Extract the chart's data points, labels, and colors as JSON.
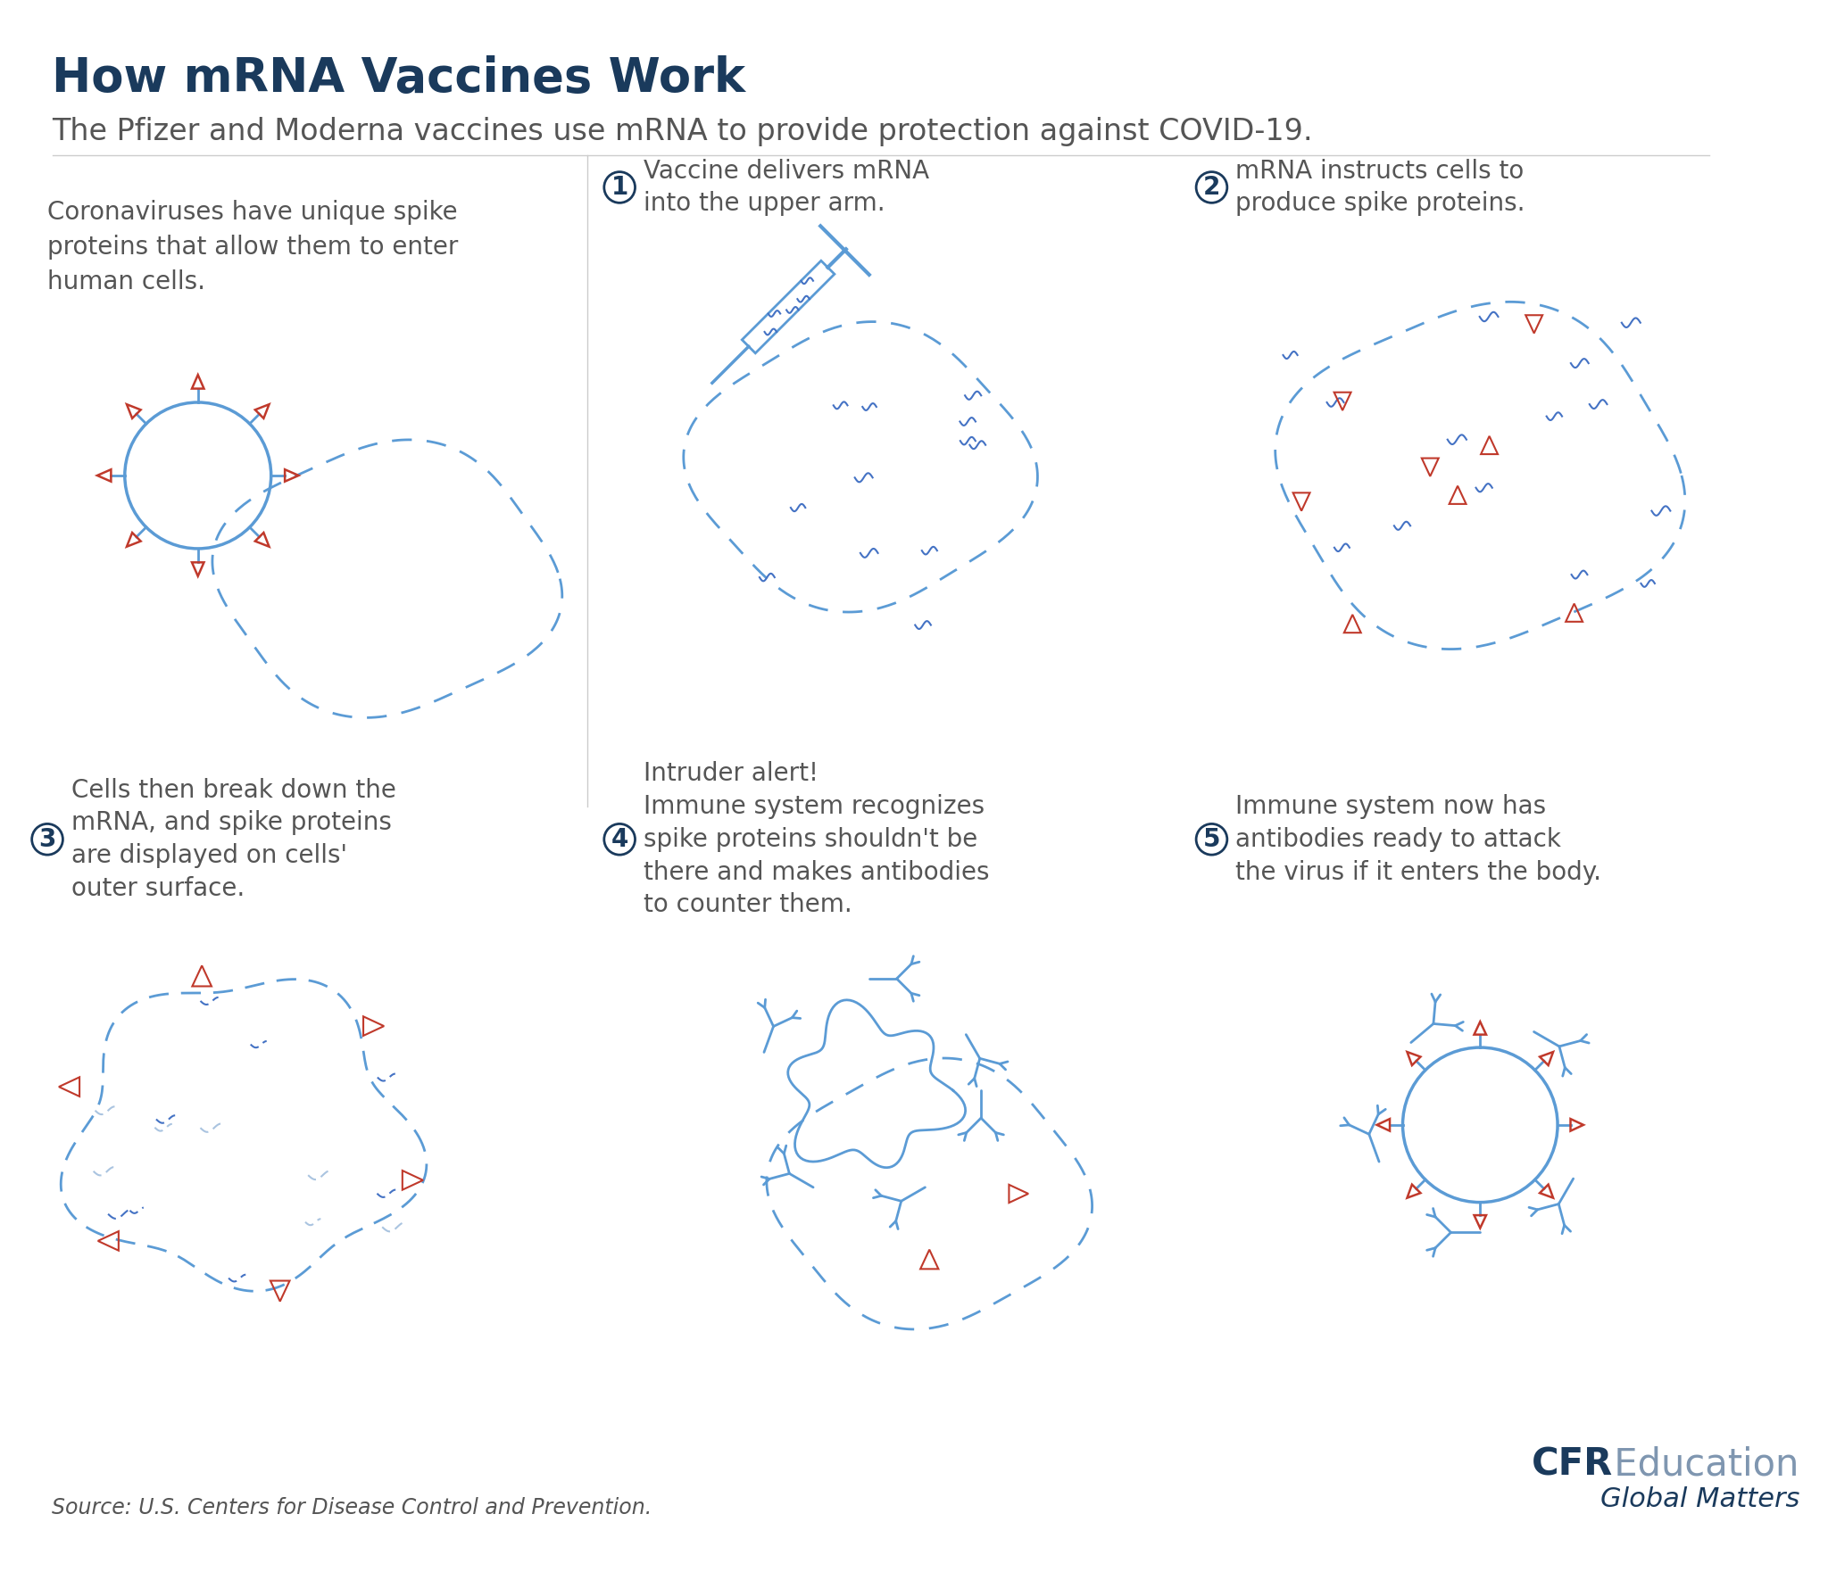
{
  "title": "How mRNA Vaccines Work",
  "subtitle": "The Pfizer and Moderna vaccines use mRNA to provide protection against COVID-19.",
  "source": "Source: U.S. Centers for Disease Control and Prevention.",
  "cfr_bold": "CFR",
  "cfr_light": " Education",
  "cfr_sub": "Global Matters",
  "panel0_text": "Coronaviruses have unique spike\nproteins that allow them to enter\nhuman cells.",
  "panel1_num": "1",
  "panel1_text": "Vaccine delivers mRNA\ninto the upper arm.",
  "panel2_num": "2",
  "panel2_text": "mRNA instructs cells to\nproduce spike proteins.",
  "panel3_num": "3",
  "panel3_text": "Cells then break down the\nmRNA, and spike proteins\nare displayed on cells'\nouter surface.",
  "panel4_num": "4",
  "panel4_text": "Intruder alert!\nImmune system recognizes\nspike proteins shouldn't be\nthere and makes antibodies\nto counter them.",
  "panel5_num": "5",
  "panel5_text": "Immune system now has\nantibodies ready to attack\nthe virus if it enters the body.",
  "blue_dark": "#1a3a5c",
  "blue_med": "#4472c4",
  "blue_light": "#5b9bd5",
  "blue_dashed": "#5b9bd5",
  "red": "#c0392b",
  "gray_text": "#555555",
  "gray_light": "#999999",
  "bg": "#ffffff"
}
